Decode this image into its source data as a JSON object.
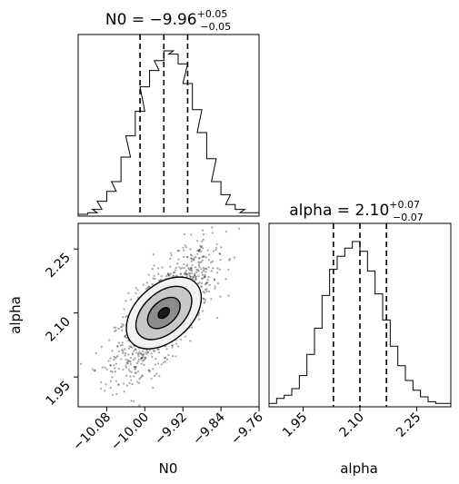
{
  "chart_data": [
    {
      "type": "histogram",
      "title_param": "N0",
      "title_value": "−9.96",
      "title_plus": "+0.05",
      "title_minus": "−0.05",
      "xlim": [
        -10.14,
        -9.76
      ],
      "quantiles": [
        -10.01,
        -9.96,
        -9.91
      ],
      "bins": [
        [
          -10.14,
          0
        ],
        [
          -10.12,
          1
        ],
        [
          -10.11,
          3
        ],
        [
          -10.1,
          8
        ],
        [
          -10.08,
          14
        ],
        [
          -10.07,
          20
        ],
        [
          -10.05,
          35
        ],
        [
          -10.04,
          48
        ],
        [
          -10.02,
          63
        ],
        [
          -10.01,
          78
        ],
        [
          -9.99,
          88
        ],
        [
          -9.98,
          94
        ],
        [
          -9.96,
          100
        ],
        [
          -9.95,
          98
        ],
        [
          -9.93,
          92
        ],
        [
          -9.92,
          80
        ],
        [
          -9.9,
          64
        ],
        [
          -9.89,
          50
        ],
        [
          -9.87,
          34
        ],
        [
          -9.86,
          20
        ],
        [
          -9.84,
          12
        ],
        [
          -9.83,
          6
        ],
        [
          -9.81,
          3
        ],
        [
          -9.8,
          1
        ],
        [
          -9.78,
          1
        ]
      ]
    },
    {
      "type": "scatter",
      "xlabel": "N0",
      "ylabel": "alpha",
      "xlim": [
        -10.14,
        -9.76
      ],
      "ylim": [
        1.88,
        2.31
      ],
      "xticks": [
        "−10.08",
        "−10.00",
        "−9.92",
        "−9.84",
        "−9.76"
      ],
      "xtick_values": [
        -10.08,
        -10.0,
        -9.92,
        -9.84,
        -9.76
      ],
      "yticks": [
        "1.95",
        "2.10",
        "2.25"
      ],
      "ytick_values": [
        1.95,
        2.1,
        2.25
      ],
      "center": [
        -9.96,
        2.1
      ],
      "contours": [
        {
          "level": "outer",
          "rx": 0.08,
          "ry": 0.145,
          "fill": "#f2f2f2"
        },
        {
          "level": "mid",
          "rx": 0.06,
          "ry": 0.105,
          "fill": "#c8c8c8"
        },
        {
          "level": "inner",
          "rx": 0.035,
          "ry": 0.062,
          "fill": "#8c8c8c"
        },
        {
          "level": "core",
          "rx": 0.012,
          "ry": 0.022,
          "fill": "#1a1a1a"
        }
      ]
    },
    {
      "type": "histogram",
      "title_param": "alpha",
      "title_value": "2.10",
      "title_plus": "+0.07",
      "title_minus": "−0.07",
      "xlabel": "alpha",
      "xlim": [
        1.86,
        2.34
      ],
      "xticks": [
        "1.95",
        "2.10",
        "2.25"
      ],
      "xtick_values": [
        1.95,
        2.1,
        2.25
      ],
      "quantiles": [
        2.03,
        2.1,
        2.17
      ],
      "bins": [
        [
          1.86,
          1
        ],
        [
          1.88,
          4
        ],
        [
          1.9,
          6
        ],
        [
          1.92,
          10
        ],
        [
          1.94,
          18
        ],
        [
          1.96,
          31
        ],
        [
          1.98,
          47
        ],
        [
          2.0,
          67
        ],
        [
          2.02,
          83
        ],
        [
          2.04,
          91
        ],
        [
          2.06,
          96
        ],
        [
          2.08,
          100
        ],
        [
          2.1,
          94
        ],
        [
          2.12,
          82
        ],
        [
          2.14,
          68
        ],
        [
          2.16,
          52
        ],
        [
          2.18,
          36
        ],
        [
          2.2,
          24
        ],
        [
          2.22,
          15
        ],
        [
          2.24,
          9
        ],
        [
          2.26,
          5
        ],
        [
          2.28,
          2
        ],
        [
          2.3,
          1
        ],
        [
          2.32,
          1
        ]
      ]
    }
  ]
}
